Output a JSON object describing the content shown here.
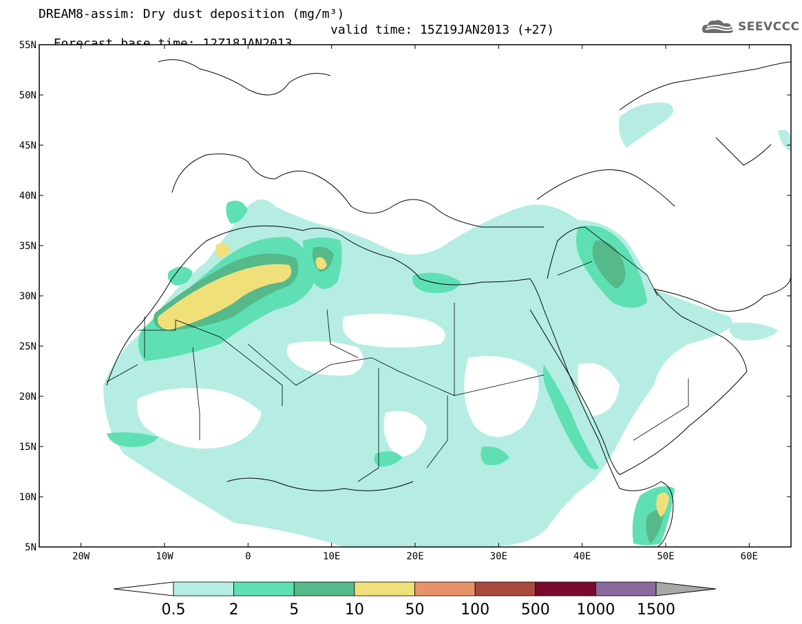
{
  "header": {
    "title_line1": "DREAM8-assim: Dry dust deposition (mg/m³)",
    "base_time": "Forecast base time: 12Z18JAN2013",
    "valid_time": "valid time: 15Z19JAN2013 (+27)",
    "logo_text": "SEEVCCC"
  },
  "map": {
    "lon_range": [
      -25,
      65
    ],
    "lat_range": [
      5,
      55
    ],
    "lat_ticks": [
      {
        "value": 55,
        "label": "55N"
      },
      {
        "value": 50,
        "label": "50N"
      },
      {
        "value": 45,
        "label": "45N"
      },
      {
        "value": 40,
        "label": "40N"
      },
      {
        "value": 35,
        "label": "35N"
      },
      {
        "value": 30,
        "label": "30N"
      },
      {
        "value": 25,
        "label": "25N"
      },
      {
        "value": 20,
        "label": "20N"
      },
      {
        "value": 15,
        "label": "15N"
      },
      {
        "value": 10,
        "label": "10N"
      },
      {
        "value": 5,
        "label": "5N"
      }
    ],
    "lon_ticks": [
      {
        "value": -20,
        "label": "20W"
      },
      {
        "value": -10,
        "label": "10W"
      },
      {
        "value": 0,
        "label": "0"
      },
      {
        "value": 10,
        "label": "10E"
      },
      {
        "value": 20,
        "label": "20E"
      },
      {
        "value": 30,
        "label": "30E"
      },
      {
        "value": 40,
        "label": "40E"
      },
      {
        "value": 50,
        "label": "50E"
      },
      {
        "value": 60,
        "label": "60E"
      }
    ],
    "colors": {
      "coast": "#000000",
      "background": "#ffffff"
    }
  },
  "legend": {
    "labels": [
      "0.5",
      "2",
      "5",
      "10",
      "50",
      "100",
      "500",
      "1000",
      "1500"
    ],
    "colors": [
      "#b5ede3",
      "#5fe0b4",
      "#55b98a",
      "#f0e07a",
      "#e8926a",
      "#a84a3e",
      "#7a0a2e",
      "#8b6a9e"
    ],
    "low_end_color": "#ffffff",
    "high_end_color": "#a8a8a8"
  }
}
